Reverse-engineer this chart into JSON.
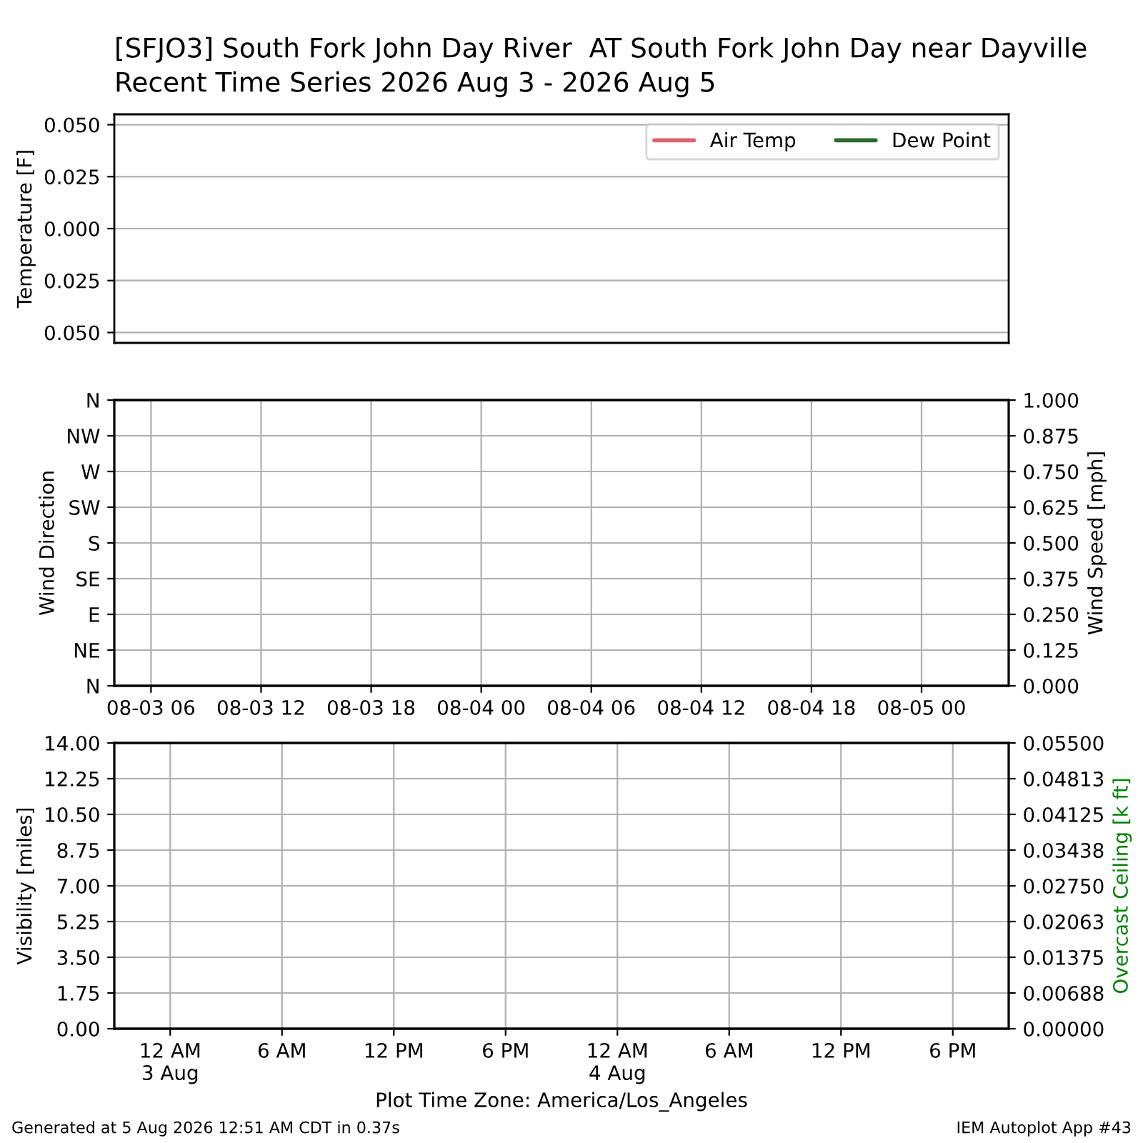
{
  "chart_data": [
    {
      "type": "line",
      "title": "[SFJO3] South Fork John Day River  AT South Fork John Day near Dayville",
      "subtitle": "Recent Time Series 2026 Aug 3 - 2026 Aug 5",
      "ylabel": "Temperature [F]",
      "series": [
        {
          "name": "Air Temp",
          "color": "#e0626a"
        },
        {
          "name": "Dew Point",
          "color": "#2d6a2d"
        }
      ],
      "ylim": [
        -0.055,
        0.055
      ],
      "yticks": [
        {
          "value": -0.05,
          "label": "0.050"
        },
        {
          "value": -0.025,
          "label": "0.025"
        },
        {
          "value": 0,
          "label": "0.000"
        },
        {
          "value": 0.025,
          "label": "0.025"
        },
        {
          "value": 0.05,
          "label": "0.050"
        }
      ],
      "grid": "y",
      "legend": "top right",
      "tick_labels": "y"
    },
    {
      "type": "line",
      "ylabel": "Wind Direction",
      "y2label": "Wind Speed [mph]",
      "xlim": [
        "2026-08-03T04:00",
        "2026-08-05T04:45"
      ],
      "xticks": [
        {
          "value": "2026-08-03T06:00",
          "label": "08-03 06"
        },
        {
          "value": "2026-08-03T12:00",
          "label": "08-03 12"
        },
        {
          "value": "2026-08-03T18:00",
          "label": "08-03 18"
        },
        {
          "value": "2026-08-04T00:00",
          "label": "08-04 00"
        },
        {
          "value": "2026-08-04T06:00",
          "label": "08-04 06"
        },
        {
          "value": "2026-08-04T12:00",
          "label": "08-04 12"
        },
        {
          "value": "2026-08-04T18:00",
          "label": "08-04 18"
        },
        {
          "value": "2026-08-05T00:00",
          "label": "08-05 00"
        }
      ],
      "y_categories": [
        "N",
        "NW",
        "W",
        "SW",
        "S",
        "SE",
        "E",
        "NE",
        "N"
      ],
      "y2lim": [
        0,
        1
      ],
      "y2ticks": [
        {
          "value": 0,
          "label": "0.000"
        },
        {
          "value": 0.125,
          "label": "0.125"
        },
        {
          "value": 0.25,
          "label": "0.250"
        },
        {
          "value": 0.375,
          "label": "0.375"
        },
        {
          "value": 0.5,
          "label": "0.500"
        },
        {
          "value": 0.625,
          "label": "0.625"
        },
        {
          "value": 0.75,
          "label": "0.750"
        },
        {
          "value": 0.875,
          "label": "0.875"
        },
        {
          "value": 1,
          "label": "1.000"
        }
      ],
      "grid": true
    },
    {
      "type": "line",
      "xlabel": "Plot Time Zone: America/Los_Angeles",
      "ylabel": "Visibility [miles]",
      "y2label": "Overcast Ceiling [k ft]",
      "series": [
        {
          "color": "#008000",
          "axis": "y2",
          "values": [
            null,
            null,
            null,
            null,
            null,
            null,
            null,
            null
          ]
        }
      ],
      "categories": [
        "12 AM\n3 Aug",
        "6 AM",
        "12 PM",
        "6 PM",
        "12 AM\n4 Aug",
        "6 AM",
        "12 PM",
        "6 PM"
      ],
      "ylim": [
        0,
        14
      ],
      "yticks": [
        {
          "value": 0,
          "label": "0.00"
        },
        {
          "value": 1.75,
          "label": "1.75"
        },
        {
          "value": 3.5,
          "label": "3.50"
        },
        {
          "value": 5.25,
          "label": "5.25"
        },
        {
          "value": 7,
          "label": "7.00"
        },
        {
          "value": 8.75,
          "label": "8.75"
        },
        {
          "value": 10.5,
          "label": "10.50"
        },
        {
          "value": 12.25,
          "label": "12.25"
        },
        {
          "value": 14,
          "label": "14.00"
        }
      ],
      "y2lim": [
        0,
        0.055
      ],
      "y2ticks": [
        {
          "value": 0,
          "label": "0.00000"
        },
        {
          "value": 0.006875,
          "label": "0.00688"
        },
        {
          "value": 0.01375,
          "label": "0.01375"
        },
        {
          "value": 0.020625,
          "label": "0.02063"
        },
        {
          "value": 0.0275,
          "label": "0.02750"
        },
        {
          "value": 0.034375,
          "label": "0.03438"
        },
        {
          "value": 0.04125,
          "label": "0.04125"
        },
        {
          "value": 0.048125,
          "label": "0.04813"
        },
        {
          "value": 0.055,
          "label": "0.05500"
        }
      ],
      "grid": true,
      "annotations": [
        "Generated at 5 Aug 2026 12:51 AM CDT in 0.37s",
        "IEM Autoplot App #43"
      ]
    }
  ]
}
